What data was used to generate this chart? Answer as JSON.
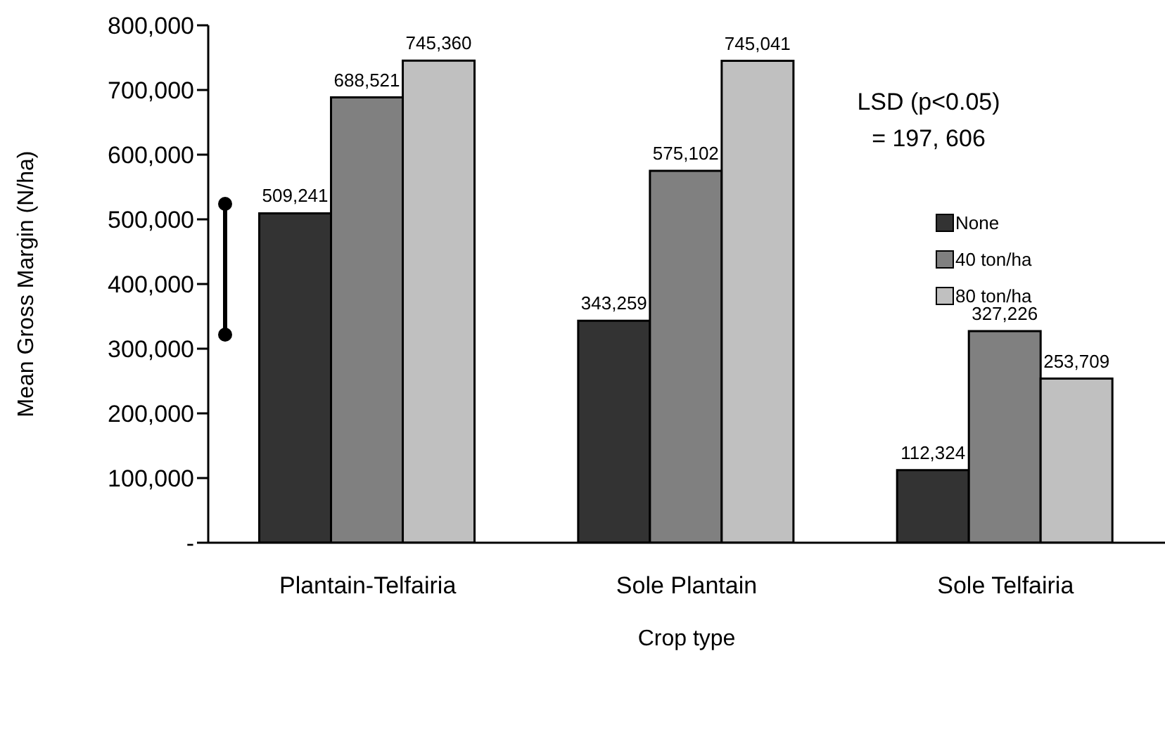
{
  "chart_data": {
    "type": "bar",
    "xlabel": "Crop type",
    "ylabel": "Mean Gross Margin (N/ha)",
    "categories": [
      "Plantain-Telfairia",
      "Sole Plantain",
      "Sole Telfairia"
    ],
    "series": [
      {
        "name": "None",
        "color": "#333333",
        "values": [
          509241,
          343259,
          112324
        ],
        "value_labels": [
          "509,241",
          "343,259",
          "112,324"
        ]
      },
      {
        "name": "40 ton/ha",
        "color": "#808080",
        "values": [
          688521,
          575102,
          327226
        ],
        "value_labels": [
          "688,521",
          "575,102",
          "327,226"
        ]
      },
      {
        "name": "80 ton/ha",
        "color": "#c0c0c0",
        "values": [
          745360,
          745041,
          253709
        ],
        "value_labels": [
          "745,360",
          "745,041",
          "253,709"
        ]
      }
    ],
    "ylim": [
      0,
      800000
    ],
    "yticks": [
      {
        "value": 0,
        "label": "-"
      },
      {
        "value": 100000,
        "label": "100,000"
      },
      {
        "value": 200000,
        "label": "200,000"
      },
      {
        "value": 300000,
        "label": "300,000"
      },
      {
        "value": 400000,
        "label": "400,000"
      },
      {
        "value": 500000,
        "label": "500,000"
      },
      {
        "value": 600000,
        "label": "600,000"
      },
      {
        "value": 700000,
        "label": "700,000"
      },
      {
        "value": 800000,
        "label": "800,000"
      }
    ],
    "annotations": [
      "LSD (p<0.05)\n= 197, 606"
    ],
    "legend": "right",
    "grid": false
  }
}
